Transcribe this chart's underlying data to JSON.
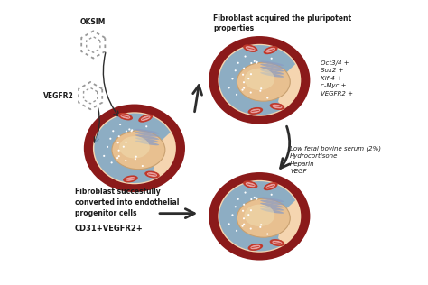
{
  "bg_color": "#ffffff",
  "cell_outer_color": "#8B1A1A",
  "cell_inner_color": "#F5D5B0",
  "nucleus_color": "#E8C090",
  "nucleus_outline": "#C8A070",
  "blue_region_color": "#7BA7C7",
  "blue_region_alpha": 0.85,
  "er_color": "#8B9DC3",
  "mito_color": "#C0392B",
  "mito_inner": "#E8A0A0",
  "arrow_color": "#2C2C2C",
  "text_color": "#1a1a1a",
  "hexagon_color": "#999999",
  "label_oksim": "OKSIM",
  "label_vegfr2": "VEGFR2",
  "title2": "Fibroblast acquired the pluripotent\nproperties",
  "text_right1": "Oct3/4 +\nSox2 +\nKlf 4 +\nc-Myc +\nVEGFR2 +",
  "text_right2": "Low fetal bovine serum (2%)\nHydrocortisone\nHeparin\nVEGF",
  "title3": "Fibroblast succesfully\nconverted into endothelial\nprogenitor cells",
  "text_bottom": "CD31+VEGFR2+",
  "figsize": [
    4.74,
    3.16
  ],
  "dpi": 100
}
